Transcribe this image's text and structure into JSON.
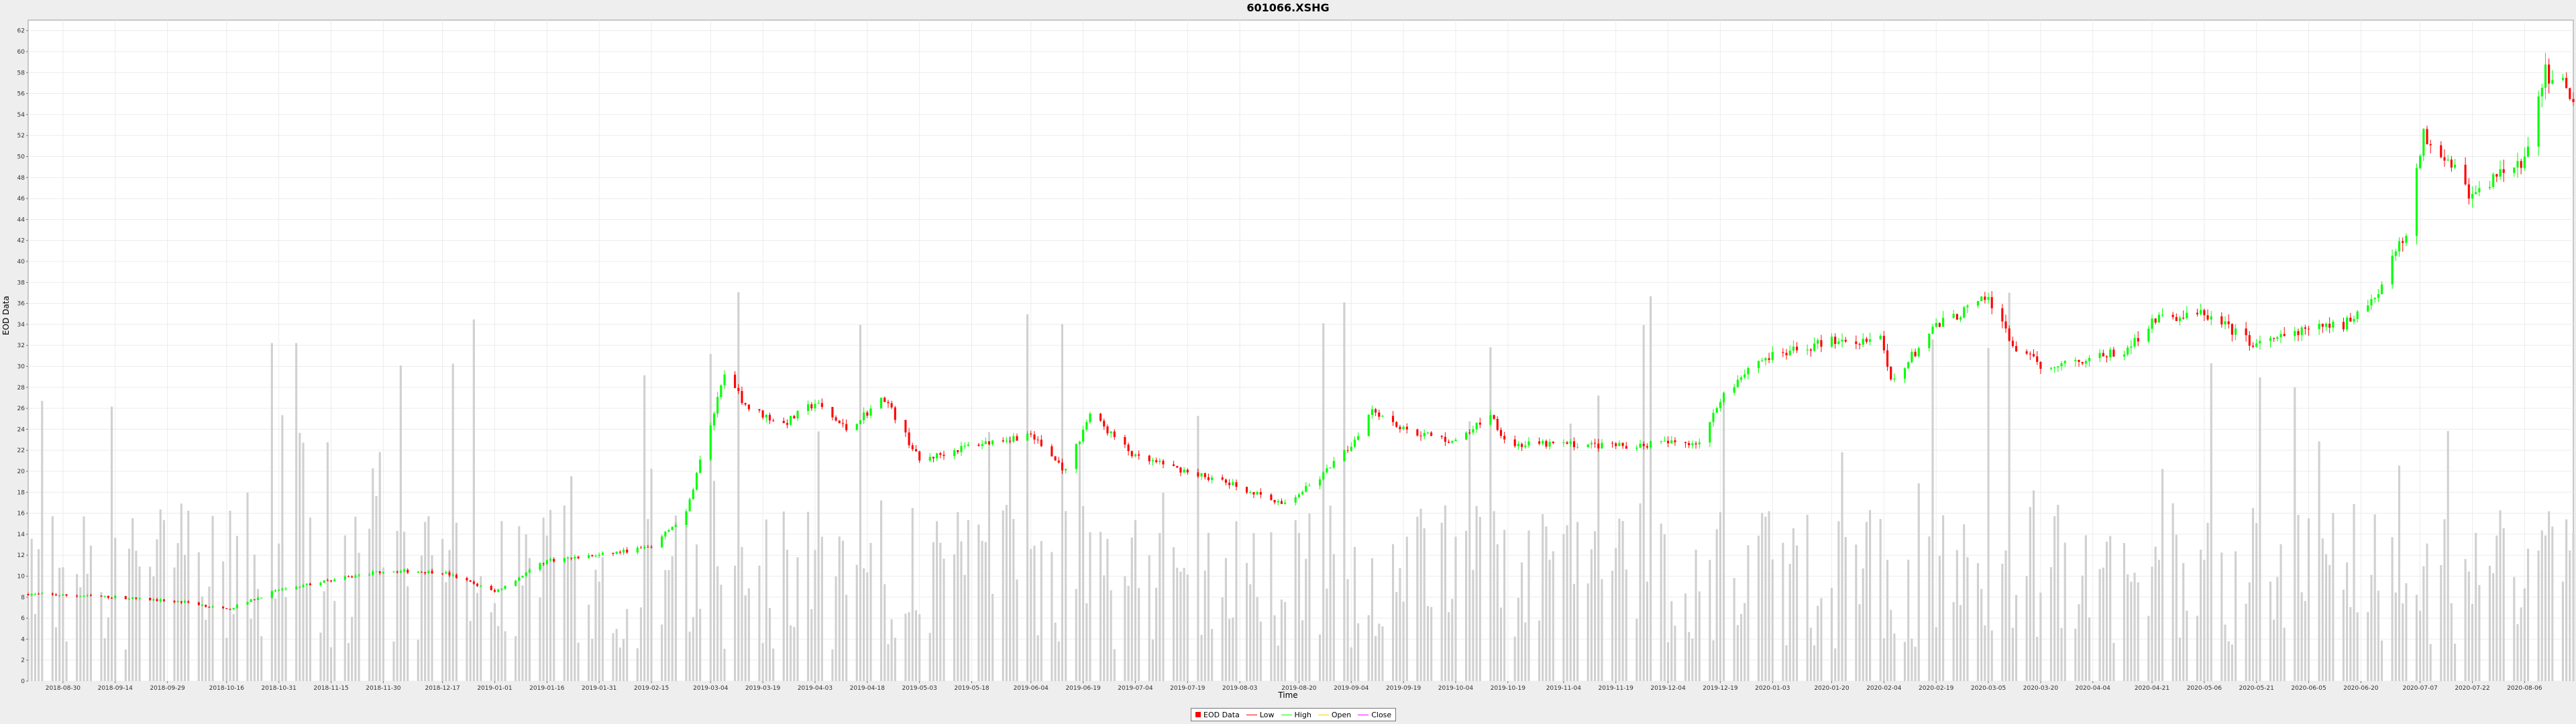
{
  "chart_data": {
    "type": "candlestick",
    "title": "601066.XSHG",
    "xlabel": "Time",
    "ylabel": "EOD Data",
    "ylim": [
      0,
      63
    ],
    "yticks": [
      0,
      2,
      4,
      6,
      8,
      10,
      12,
      14,
      16,
      18,
      20,
      22,
      24,
      26,
      28,
      30,
      32,
      34,
      36,
      38,
      40,
      42,
      44,
      46,
      48,
      50,
      52,
      54,
      56,
      58,
      60,
      62
    ],
    "date_range": [
      "2018-08-20",
      "2020-08-20"
    ],
    "xtick_labels": [
      "2018-08-30",
      "2018-09-14",
      "2018-09-29",
      "2018-10-16",
      "2018-10-31",
      "2018-11-15",
      "2018-11-30",
      "2018-12-17",
      "2019-01-01",
      "2019-01-16",
      "2019-01-31",
      "2019-02-15",
      "2019-03-04",
      "2019-03-19",
      "2019-04-03",
      "2019-04-18",
      "2019-05-03",
      "2019-05-18",
      "2019-06-04",
      "2019-06-19",
      "2019-07-04",
      "2019-07-19",
      "2019-08-03",
      "2019-08-20",
      "2019-09-04",
      "2019-09-19",
      "2019-10-04",
      "2019-10-19",
      "2019-11-04",
      "2019-11-19",
      "2019-12-04",
      "2019-12-19",
      "2020-01-03",
      "2020-01-20",
      "2020-02-04",
      "2020-02-19",
      "2020-03-05",
      "2020-03-20",
      "2020-04-04",
      "2020-04-21",
      "2020-05-06",
      "2020-05-21",
      "2020-06-05",
      "2020-06-20",
      "2020-07-07",
      "2020-07-22",
      "2020-08-06"
    ],
    "close_anchors": [
      [
        "2018-08-20",
        8.3
      ],
      [
        "2018-09-14",
        8.0
      ],
      [
        "2018-10-05",
        7.5
      ],
      [
        "2018-10-16",
        6.8
      ],
      [
        "2018-10-31",
        8.7
      ],
      [
        "2018-11-15",
        9.6
      ],
      [
        "2018-11-30",
        10.5
      ],
      [
        "2018-12-17",
        10.4
      ],
      [
        "2019-01-01",
        8.5
      ],
      [
        "2019-01-16",
        11.5
      ],
      [
        "2019-01-31",
        12.0
      ],
      [
        "2019-02-15",
        12.8
      ],
      [
        "2019-02-25",
        16.0
      ],
      [
        "2019-03-01",
        21.0
      ],
      [
        "2019-03-08",
        29.0
      ],
      [
        "2019-03-15",
        26.0
      ],
      [
        "2019-03-25",
        24.5
      ],
      [
        "2019-04-03",
        26.5
      ],
      [
        "2019-04-12",
        24.0
      ],
      [
        "2019-04-23",
        27.0
      ],
      [
        "2019-05-03",
        21.0
      ],
      [
        "2019-05-18",
        22.5
      ],
      [
        "2019-06-04",
        23.5
      ],
      [
        "2019-06-14",
        20.0
      ],
      [
        "2019-06-21",
        25.5
      ],
      [
        "2019-07-04",
        21.3
      ],
      [
        "2019-07-19",
        20.0
      ],
      [
        "2019-08-03",
        18.5
      ],
      [
        "2019-08-15",
        16.8
      ],
      [
        "2019-08-25",
        19.0
      ],
      [
        "2019-09-04",
        22.5
      ],
      [
        "2019-09-10",
        26.0
      ],
      [
        "2019-09-19",
        24.0
      ],
      [
        "2019-10-04",
        22.8
      ],
      [
        "2019-10-14",
        25.5
      ],
      [
        "2019-10-19",
        22.5
      ],
      [
        "2019-11-04",
        22.6
      ],
      [
        "2019-11-19",
        22.4
      ],
      [
        "2019-12-04",
        22.7
      ],
      [
        "2019-12-14",
        22.8
      ],
      [
        "2019-12-19",
        27.0
      ],
      [
        "2019-12-29",
        30.5
      ],
      [
        "2020-01-10",
        31.5
      ],
      [
        "2020-01-20",
        32.5
      ],
      [
        "2020-02-03",
        32.5
      ],
      [
        "2020-02-06",
        28.5
      ],
      [
        "2020-02-19",
        33.8
      ],
      [
        "2020-03-05",
        36.5
      ],
      [
        "2020-03-12",
        32.0
      ],
      [
        "2020-03-20",
        30.0
      ],
      [
        "2020-04-04",
        30.8
      ],
      [
        "2020-04-14",
        31.5
      ],
      [
        "2020-04-21",
        34.5
      ],
      [
        "2020-05-06",
        35.0
      ],
      [
        "2020-05-21",
        32.0
      ],
      [
        "2020-06-05",
        33.5
      ],
      [
        "2020-06-15",
        34.0
      ],
      [
        "2020-06-25",
        37.0
      ],
      [
        "2020-07-03",
        43.0
      ],
      [
        "2020-07-08",
        52.0
      ],
      [
        "2020-07-15",
        50.0
      ],
      [
        "2020-07-22",
        46.0
      ],
      [
        "2020-07-30",
        48.5
      ],
      [
        "2020-08-06",
        49.5
      ],
      [
        "2020-08-12",
        58.0
      ],
      [
        "2020-08-20",
        56.0
      ]
    ],
    "volume_note": "Volume is drawn as grey bars against the same EOD Data axis.",
    "colors": {
      "up": "#00ff00",
      "down": "#ff0000",
      "low": "#ff0000",
      "high": "#00ff00",
      "volume": "#d0d0d0"
    },
    "legend": [
      {
        "label": "EOD Data",
        "kind": "box",
        "color": "#ff0000"
      },
      {
        "label": "Low",
        "kind": "line",
        "color": "#ff0000"
      },
      {
        "label": "High",
        "kind": "line",
        "color": "#00ff00"
      },
      {
        "label": "Open",
        "kind": "line",
        "color": "#ffc800"
      },
      {
        "label": "Close",
        "kind": "line",
        "color": "#ff00ff"
      }
    ],
    "grid": true,
    "legend_position": "bottom-center"
  }
}
